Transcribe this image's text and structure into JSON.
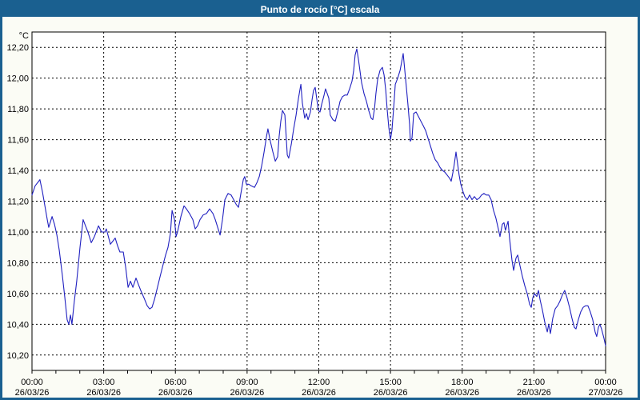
{
  "window": {
    "title": "Punto de rocío [°C] escala"
  },
  "colors": {
    "frame": "#1a6090",
    "titlebar_bg": "#1a6090",
    "titlebar_text": "#ffffff",
    "window_bg": "#fbfcf5",
    "plot_bg": "#ffffff",
    "grid": "#000000",
    "axis": "#000000",
    "line": "#2121c0",
    "label_text": "#000000"
  },
  "chart_data": {
    "type": "line",
    "title": "Punto de rocío [°C] escala",
    "unit_label": "°C",
    "ylabel": "°C",
    "xlabel": "",
    "ylim": [
      10.1,
      12.3
    ],
    "xlim_hours": [
      0,
      24
    ],
    "grid": "dashed",
    "legend_position": "none",
    "yticks": [
      {
        "v": 12.2,
        "label": "12,20"
      },
      {
        "v": 12.0,
        "label": "12,00"
      },
      {
        "v": 11.8,
        "label": "11,80"
      },
      {
        "v": 11.6,
        "label": "11,60"
      },
      {
        "v": 11.4,
        "label": "11,40"
      },
      {
        "v": 11.2,
        "label": "11,20"
      },
      {
        "v": 11.0,
        "label": "11,00"
      },
      {
        "v": 10.8,
        "label": "10,80"
      },
      {
        "v": 10.6,
        "label": "10,60"
      },
      {
        "v": 10.4,
        "label": "10,40"
      },
      {
        "v": 10.2,
        "label": "10,20"
      }
    ],
    "xticks": [
      {
        "h": 0,
        "time": "00:00",
        "date": "26/03/26"
      },
      {
        "h": 3,
        "time": "03:00",
        "date": "26/03/26"
      },
      {
        "h": 6,
        "time": "06:00",
        "date": "26/03/26"
      },
      {
        "h": 9,
        "time": "09:00",
        "date": "26/03/26"
      },
      {
        "h": 12,
        "time": "12:00",
        "date": "26/03/26"
      },
      {
        "h": 15,
        "time": "15:00",
        "date": "26/03/26"
      },
      {
        "h": 18,
        "time": "18:00",
        "date": "26/03/26"
      },
      {
        "h": 21,
        "time": "21:00",
        "date": "26/03/26"
      },
      {
        "h": 24,
        "time": "00:00",
        "date": "27/03/26"
      }
    ],
    "x_minor_tick_hours": 1,
    "series": [
      {
        "name": "Punto de rocío",
        "color": "#2121c0",
        "points": [
          [
            0,
            11.24
          ],
          [
            0.13,
            11.3
          ],
          [
            0.33,
            11.34
          ],
          [
            0.44,
            11.26
          ],
          [
            0.54,
            11.17
          ],
          [
            0.64,
            11.08
          ],
          [
            0.7,
            11.03
          ],
          [
            0.84,
            11.1
          ],
          [
            0.94,
            11.05
          ],
          [
            1.04,
            10.98
          ],
          [
            1.14,
            10.88
          ],
          [
            1.27,
            10.72
          ],
          [
            1.37,
            10.58
          ],
          [
            1.47,
            10.43
          ],
          [
            1.54,
            10.4
          ],
          [
            1.61,
            10.46
          ],
          [
            1.67,
            10.4
          ],
          [
            1.77,
            10.55
          ],
          [
            1.87,
            10.68
          ],
          [
            2.01,
            10.9
          ],
          [
            2.14,
            11.08
          ],
          [
            2.24,
            11.04
          ],
          [
            2.34,
            11.0
          ],
          [
            2.48,
            10.93
          ],
          [
            2.61,
            10.97
          ],
          [
            2.78,
            11.04
          ],
          [
            2.91,
            11.0
          ],
          [
            3.05,
            11.0
          ],
          [
            3.11,
            11.02
          ],
          [
            3.28,
            10.92
          ],
          [
            3.38,
            10.94
          ],
          [
            3.48,
            10.96
          ],
          [
            3.58,
            10.91
          ],
          [
            3.68,
            10.87
          ],
          [
            3.82,
            10.87
          ],
          [
            3.92,
            10.77
          ],
          [
            4.02,
            10.64
          ],
          [
            4.12,
            10.68
          ],
          [
            4.22,
            10.64
          ],
          [
            4.35,
            10.7
          ],
          [
            4.45,
            10.66
          ],
          [
            4.55,
            10.62
          ],
          [
            4.69,
            10.57
          ],
          [
            4.82,
            10.52
          ],
          [
            4.92,
            10.5
          ],
          [
            5.02,
            10.51
          ],
          [
            5.12,
            10.56
          ],
          [
            5.22,
            10.62
          ],
          [
            5.36,
            10.71
          ],
          [
            5.49,
            10.79
          ],
          [
            5.59,
            10.85
          ],
          [
            5.69,
            10.9
          ],
          [
            5.79,
            10.99
          ],
          [
            5.86,
            11.14
          ],
          [
            5.96,
            11.08
          ],
          [
            6.03,
            10.97
          ],
          [
            6.09,
            11.0
          ],
          [
            6.23,
            11.1
          ],
          [
            6.36,
            11.17
          ],
          [
            6.46,
            11.15
          ],
          [
            6.59,
            11.12
          ],
          [
            6.73,
            11.08
          ],
          [
            6.83,
            11.02
          ],
          [
            6.93,
            11.04
          ],
          [
            7.03,
            11.08
          ],
          [
            7.16,
            11.11
          ],
          [
            7.3,
            11.12
          ],
          [
            7.43,
            11.15
          ],
          [
            7.57,
            11.12
          ],
          [
            7.67,
            11.08
          ],
          [
            7.77,
            11.03
          ],
          [
            7.87,
            10.98
          ],
          [
            7.97,
            11.08
          ],
          [
            8.07,
            11.21
          ],
          [
            8.2,
            11.25
          ],
          [
            8.33,
            11.24
          ],
          [
            8.44,
            11.21
          ],
          [
            8.54,
            11.18
          ],
          [
            8.64,
            11.16
          ],
          [
            8.74,
            11.25
          ],
          [
            8.84,
            11.34
          ],
          [
            8.9,
            11.36
          ],
          [
            8.97,
            11.31
          ],
          [
            9.07,
            11.31
          ],
          [
            9.17,
            11.3
          ],
          [
            9.31,
            11.29
          ],
          [
            9.41,
            11.32
          ],
          [
            9.51,
            11.36
          ],
          [
            9.61,
            11.43
          ],
          [
            9.71,
            11.52
          ],
          [
            9.81,
            11.62
          ],
          [
            9.87,
            11.67
          ],
          [
            9.97,
            11.59
          ],
          [
            10.08,
            11.52
          ],
          [
            10.18,
            11.46
          ],
          [
            10.28,
            11.49
          ],
          [
            10.34,
            11.62
          ],
          [
            10.41,
            11.72
          ],
          [
            10.48,
            11.79
          ],
          [
            10.58,
            11.76
          ],
          [
            10.68,
            11.5
          ],
          [
            10.74,
            11.48
          ],
          [
            10.85,
            11.57
          ],
          [
            10.95,
            11.67
          ],
          [
            11.05,
            11.76
          ],
          [
            11.15,
            11.87
          ],
          [
            11.25,
            11.96
          ],
          [
            11.31,
            11.84
          ],
          [
            11.41,
            11.74
          ],
          [
            11.48,
            11.77
          ],
          [
            11.55,
            11.73
          ],
          [
            11.65,
            11.78
          ],
          [
            11.72,
            11.86
          ],
          [
            11.78,
            11.92
          ],
          [
            11.85,
            11.94
          ],
          [
            11.92,
            11.86
          ],
          [
            11.98,
            11.79
          ],
          [
            12.05,
            11.78
          ],
          [
            12.12,
            11.83
          ],
          [
            12.22,
            11.89
          ],
          [
            12.28,
            11.93
          ],
          [
            12.35,
            11.9
          ],
          [
            12.42,
            11.87
          ],
          [
            12.48,
            11.76
          ],
          [
            12.59,
            11.73
          ],
          [
            12.69,
            11.72
          ],
          [
            12.79,
            11.78
          ],
          [
            12.89,
            11.85
          ],
          [
            12.99,
            11.88
          ],
          [
            13.09,
            11.89
          ],
          [
            13.19,
            11.89
          ],
          [
            13.29,
            11.93
          ],
          [
            13.39,
            11.98
          ],
          [
            13.46,
            12.05
          ],
          [
            13.52,
            12.15
          ],
          [
            13.59,
            12.19
          ],
          [
            13.66,
            12.12
          ],
          [
            13.72,
            12.05
          ],
          [
            13.79,
            11.97
          ],
          [
            13.89,
            11.9
          ],
          [
            13.99,
            11.85
          ],
          [
            14.09,
            11.79
          ],
          [
            14.19,
            11.74
          ],
          [
            14.26,
            11.73
          ],
          [
            14.33,
            11.8
          ],
          [
            14.39,
            11.9
          ],
          [
            14.46,
            11.99
          ],
          [
            14.56,
            12.05
          ],
          [
            14.66,
            12.07
          ],
          [
            14.73,
            12.02
          ],
          [
            14.8,
            11.92
          ],
          [
            14.86,
            11.8
          ],
          [
            14.93,
            11.68
          ],
          [
            15.0,
            11.6
          ],
          [
            15.06,
            11.66
          ],
          [
            15.13,
            11.8
          ],
          [
            15.2,
            11.96
          ],
          [
            15.3,
            12.0
          ],
          [
            15.4,
            12.05
          ],
          [
            15.46,
            12.1
          ],
          [
            15.53,
            12.16
          ],
          [
            15.6,
            12.05
          ],
          [
            15.66,
            11.95
          ],
          [
            15.73,
            11.83
          ],
          [
            15.8,
            11.7
          ],
          [
            15.83,
            11.59
          ],
          [
            15.9,
            11.61
          ],
          [
            15.97,
            11.77
          ],
          [
            16.07,
            11.78
          ],
          [
            16.17,
            11.75
          ],
          [
            16.27,
            11.72
          ],
          [
            16.37,
            11.69
          ],
          [
            16.47,
            11.66
          ],
          [
            16.57,
            11.61
          ],
          [
            16.67,
            11.56
          ],
          [
            16.77,
            11.51
          ],
          [
            16.87,
            11.47
          ],
          [
            16.97,
            11.45
          ],
          [
            17.07,
            11.42
          ],
          [
            17.17,
            11.4
          ],
          [
            17.27,
            11.39
          ],
          [
            17.37,
            11.37
          ],
          [
            17.47,
            11.35
          ],
          [
            17.54,
            11.33
          ],
          [
            17.64,
            11.41
          ],
          [
            17.74,
            11.52
          ],
          [
            17.81,
            11.44
          ],
          [
            17.87,
            11.37
          ],
          [
            17.94,
            11.31
          ],
          [
            18.04,
            11.26
          ],
          [
            18.11,
            11.23
          ],
          [
            18.21,
            11.21
          ],
          [
            18.31,
            11.24
          ],
          [
            18.41,
            11.21
          ],
          [
            18.51,
            11.23
          ],
          [
            18.61,
            11.21
          ],
          [
            18.71,
            11.22
          ],
          [
            18.81,
            11.24
          ],
          [
            18.91,
            11.25
          ],
          [
            19.01,
            11.24
          ],
          [
            19.11,
            11.24
          ],
          [
            19.21,
            11.21
          ],
          [
            19.31,
            11.14
          ],
          [
            19.41,
            11.09
          ],
          [
            19.51,
            11.02
          ],
          [
            19.58,
            10.97
          ],
          [
            19.68,
            11.05
          ],
          [
            19.75,
            11.06
          ],
          [
            19.81,
            11.01
          ],
          [
            19.92,
            11.07
          ],
          [
            19.98,
            10.96
          ],
          [
            20.08,
            10.82
          ],
          [
            20.15,
            10.75
          ],
          [
            20.25,
            10.83
          ],
          [
            20.32,
            10.85
          ],
          [
            20.42,
            10.78
          ],
          [
            20.52,
            10.71
          ],
          [
            20.62,
            10.65
          ],
          [
            20.72,
            10.6
          ],
          [
            20.82,
            10.53
          ],
          [
            20.89,
            10.51
          ],
          [
            20.95,
            10.57
          ],
          [
            21.02,
            10.6
          ],
          [
            21.12,
            10.58
          ],
          [
            21.19,
            10.62
          ],
          [
            21.26,
            10.56
          ],
          [
            21.36,
            10.49
          ],
          [
            21.46,
            10.41
          ],
          [
            21.56,
            10.35
          ],
          [
            21.62,
            10.4
          ],
          [
            21.69,
            10.34
          ],
          [
            21.79,
            10.44
          ],
          [
            21.89,
            10.5
          ],
          [
            21.99,
            10.52
          ],
          [
            22.09,
            10.55
          ],
          [
            22.19,
            10.59
          ],
          [
            22.29,
            10.62
          ],
          [
            22.39,
            10.57
          ],
          [
            22.49,
            10.51
          ],
          [
            22.59,
            10.44
          ],
          [
            22.69,
            10.38
          ],
          [
            22.76,
            10.37
          ],
          [
            22.86,
            10.43
          ],
          [
            22.96,
            10.48
          ],
          [
            23.06,
            10.51
          ],
          [
            23.16,
            10.52
          ],
          [
            23.26,
            10.52
          ],
          [
            23.36,
            10.48
          ],
          [
            23.46,
            10.43
          ],
          [
            23.56,
            10.35
          ],
          [
            23.63,
            10.32
          ],
          [
            23.7,
            10.38
          ],
          [
            23.76,
            10.4
          ],
          [
            23.83,
            10.37
          ],
          [
            23.93,
            10.31
          ],
          [
            24.0,
            10.26
          ]
        ]
      }
    ]
  }
}
